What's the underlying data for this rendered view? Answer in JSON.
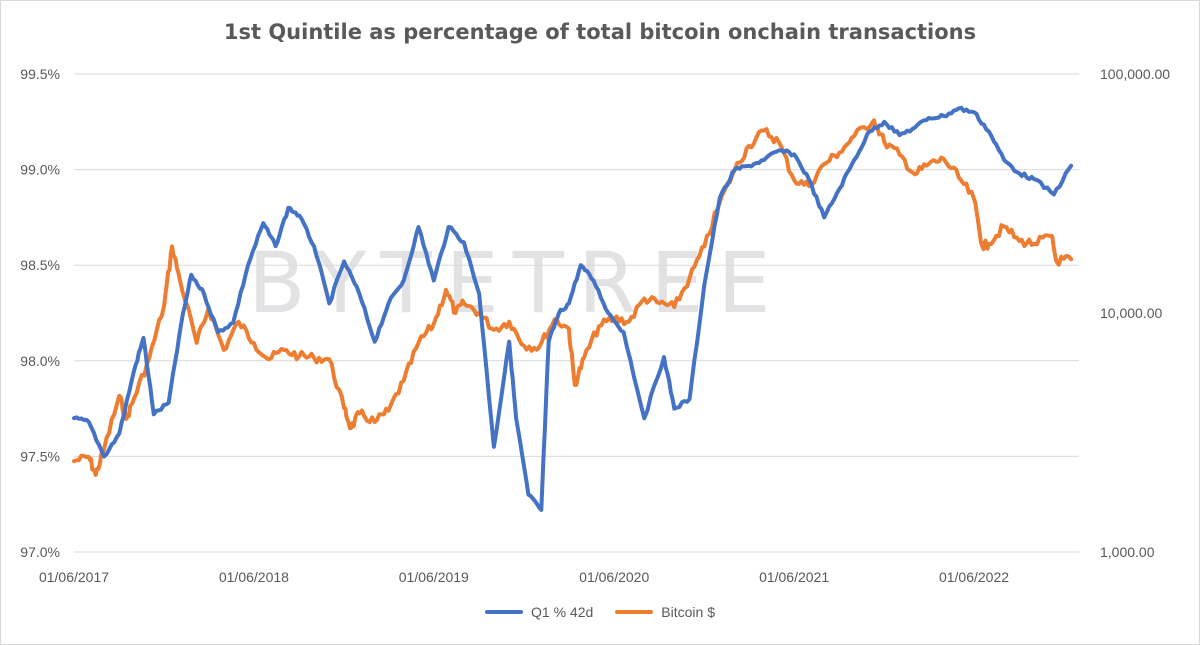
{
  "chart_data": {
    "type": "line",
    "title": "1st Quintile as percentage of total bitcoin onchain transactions",
    "watermark": "BYTETREE",
    "x_tick_labels": [
      "01/06/2017",
      "01/06/2018",
      "01/06/2019",
      "01/06/2020",
      "01/06/2021",
      "01/06/2022"
    ],
    "left_axis": {
      "label": "",
      "ylim": [
        97.0,
        99.5
      ],
      "ticks": [
        "97.0%",
        "97.5%",
        "98.0%",
        "98.5%",
        "99.0%",
        "99.5%"
      ],
      "tick_values": [
        97.0,
        97.5,
        98.0,
        98.5,
        99.0,
        99.5
      ]
    },
    "right_axis": {
      "label": "",
      "scale": "log",
      "ylim": [
        1000,
        100000
      ],
      "ticks": [
        "1,000.00",
        "10,000.00",
        "100,000.00"
      ],
      "tick_values": [
        1000,
        10000,
        100000
      ]
    },
    "x_range": [
      "2017-06-01",
      "2022-12-31"
    ],
    "grid": true,
    "legend_position": "bottom",
    "series": [
      {
        "name": "Q1 % 42d",
        "axis": "left",
        "color": "#4472c4",
        "points": [
          [
            "2017-06-01",
            97.7
          ],
          [
            "2017-07-01",
            97.68
          ],
          [
            "2017-08-01",
            97.5
          ],
          [
            "2017-09-01",
            97.62
          ],
          [
            "2017-10-01",
            97.95
          ],
          [
            "2017-10-20",
            98.12
          ],
          [
            "2017-11-10",
            97.72
          ],
          [
            "2017-12-10",
            97.78
          ],
          [
            "2018-01-05",
            98.2
          ],
          [
            "2018-01-25",
            98.45
          ],
          [
            "2018-02-20",
            98.35
          ],
          [
            "2018-03-20",
            98.15
          ],
          [
            "2018-04-20",
            98.2
          ],
          [
            "2018-05-20",
            98.5
          ],
          [
            "2018-06-20",
            98.72
          ],
          [
            "2018-07-15",
            98.6
          ],
          [
            "2018-08-10",
            98.8
          ],
          [
            "2018-09-01",
            98.76
          ],
          [
            "2018-10-01",
            98.6
          ],
          [
            "2018-11-01",
            98.3
          ],
          [
            "2018-12-01",
            98.52
          ],
          [
            "2019-01-01",
            98.35
          ],
          [
            "2019-02-01",
            98.1
          ],
          [
            "2019-03-01",
            98.3
          ],
          [
            "2019-04-01",
            98.42
          ],
          [
            "2019-05-01",
            98.7
          ],
          [
            "2019-06-01",
            98.42
          ],
          [
            "2019-07-01",
            98.7
          ],
          [
            "2019-08-01",
            98.62
          ],
          [
            "2019-09-01",
            98.35
          ],
          [
            "2019-10-01",
            97.55
          ],
          [
            "2019-11-01",
            98.1
          ],
          [
            "2019-11-15",
            97.7
          ],
          [
            "2019-12-10",
            97.3
          ],
          [
            "2020-01-05",
            97.22
          ],
          [
            "2020-01-20",
            98.1
          ],
          [
            "2020-02-10",
            98.25
          ],
          [
            "2020-03-01",
            98.3
          ],
          [
            "2020-03-25",
            98.5
          ],
          [
            "2020-04-20",
            98.42
          ],
          [
            "2020-05-20",
            98.25
          ],
          [
            "2020-06-20",
            98.15
          ],
          [
            "2020-08-01",
            97.7
          ],
          [
            "2020-09-10",
            98.02
          ],
          [
            "2020-10-01",
            97.75
          ],
          [
            "2020-11-01",
            97.8
          ],
          [
            "2020-12-01",
            98.4
          ],
          [
            "2021-01-01",
            98.85
          ],
          [
            "2021-02-01",
            99.0
          ],
          [
            "2021-03-01",
            99.02
          ],
          [
            "2021-04-01",
            99.05
          ],
          [
            "2021-05-01",
            99.1
          ],
          [
            "2021-06-01",
            99.08
          ],
          [
            "2021-07-01",
            98.95
          ],
          [
            "2021-08-01",
            98.75
          ],
          [
            "2021-09-01",
            98.9
          ],
          [
            "2021-10-01",
            99.05
          ],
          [
            "2021-11-01",
            99.2
          ],
          [
            "2021-12-01",
            99.25
          ],
          [
            "2022-01-01",
            99.18
          ],
          [
            "2022-02-01",
            99.22
          ],
          [
            "2022-03-01",
            99.27
          ],
          [
            "2022-04-01",
            99.28
          ],
          [
            "2022-05-01",
            99.32
          ],
          [
            "2022-06-01",
            99.3
          ],
          [
            "2022-07-01",
            99.2
          ],
          [
            "2022-08-01",
            99.05
          ],
          [
            "2022-09-01",
            98.98
          ],
          [
            "2022-10-01",
            98.95
          ],
          [
            "2022-11-10",
            98.87
          ],
          [
            "2022-12-15",
            99.02
          ]
        ]
      },
      {
        "name": "Bitcoin $",
        "axis": "right",
        "color": "#ed7d31",
        "points": [
          [
            "2017-06-01",
            2400
          ],
          [
            "2017-07-01",
            2500
          ],
          [
            "2017-07-15",
            2100
          ],
          [
            "2017-08-01",
            2700
          ],
          [
            "2017-09-01",
            4500
          ],
          [
            "2017-09-15",
            3600
          ],
          [
            "2017-10-01",
            4400
          ],
          [
            "2017-11-01",
            6500
          ],
          [
            "2017-12-01",
            10800
          ],
          [
            "2017-12-17",
            19000
          ],
          [
            "2018-01-01",
            14000
          ],
          [
            "2018-02-05",
            7500
          ],
          [
            "2018-03-01",
            10500
          ],
          [
            "2018-04-01",
            7000
          ],
          [
            "2018-05-01",
            9200
          ],
          [
            "2018-06-01",
            7500
          ],
          [
            "2018-07-01",
            6400
          ],
          [
            "2018-08-01",
            7000
          ],
          [
            "2018-09-01",
            6600
          ],
          [
            "2018-10-01",
            6500
          ],
          [
            "2018-11-01",
            6400
          ],
          [
            "2018-12-01",
            4000
          ],
          [
            "2018-12-15",
            3300
          ],
          [
            "2019-01-01",
            3800
          ],
          [
            "2019-02-01",
            3500
          ],
          [
            "2019-03-01",
            3900
          ],
          [
            "2019-04-01",
            5200
          ],
          [
            "2019-05-01",
            7500
          ],
          [
            "2019-06-01",
            9000
          ],
          [
            "2019-06-26",
            12500
          ],
          [
            "2019-07-15",
            10000
          ],
          [
            "2019-08-01",
            11000
          ],
          [
            "2019-09-01",
            10000
          ],
          [
            "2019-10-01",
            8500
          ],
          [
            "2019-11-01",
            9200
          ],
          [
            "2019-12-01",
            7300
          ],
          [
            "2020-01-01",
            7200
          ],
          [
            "2020-02-01",
            9400
          ],
          [
            "2020-03-01",
            8600
          ],
          [
            "2020-03-13",
            5000
          ],
          [
            "2020-04-01",
            6500
          ],
          [
            "2020-05-01",
            8800
          ],
          [
            "2020-06-01",
            9500
          ],
          [
            "2020-07-01",
            9200
          ],
          [
            "2020-08-01",
            11500
          ],
          [
            "2020-09-01",
            11000
          ],
          [
            "2020-10-01",
            10600
          ],
          [
            "2020-11-01",
            14000
          ],
          [
            "2020-12-01",
            19000
          ],
          [
            "2021-01-01",
            29000
          ],
          [
            "2021-02-01",
            40000
          ],
          [
            "2021-03-01",
            50000
          ],
          [
            "2021-04-01",
            58000
          ],
          [
            "2021-05-01",
            52000
          ],
          [
            "2021-06-01",
            36000
          ],
          [
            "2021-07-01",
            34000
          ],
          [
            "2021-08-01",
            42000
          ],
          [
            "2021-09-01",
            47000
          ],
          [
            "2021-10-01",
            55000
          ],
          [
            "2021-11-10",
            64000
          ],
          [
            "2021-12-01",
            52000
          ],
          [
            "2022-01-01",
            46000
          ],
          [
            "2022-02-01",
            38000
          ],
          [
            "2022-03-01",
            42000
          ],
          [
            "2022-04-01",
            44000
          ],
          [
            "2022-05-01",
            37000
          ],
          [
            "2022-06-01",
            30000
          ],
          [
            "2022-06-18",
            19000
          ],
          [
            "2022-07-01",
            19500
          ],
          [
            "2022-08-01",
            23000
          ],
          [
            "2022-09-01",
            20000
          ],
          [
            "2022-10-01",
            19500
          ],
          [
            "2022-11-05",
            21000
          ],
          [
            "2022-11-15",
            16500
          ],
          [
            "2022-12-15",
            16800
          ]
        ]
      }
    ]
  }
}
